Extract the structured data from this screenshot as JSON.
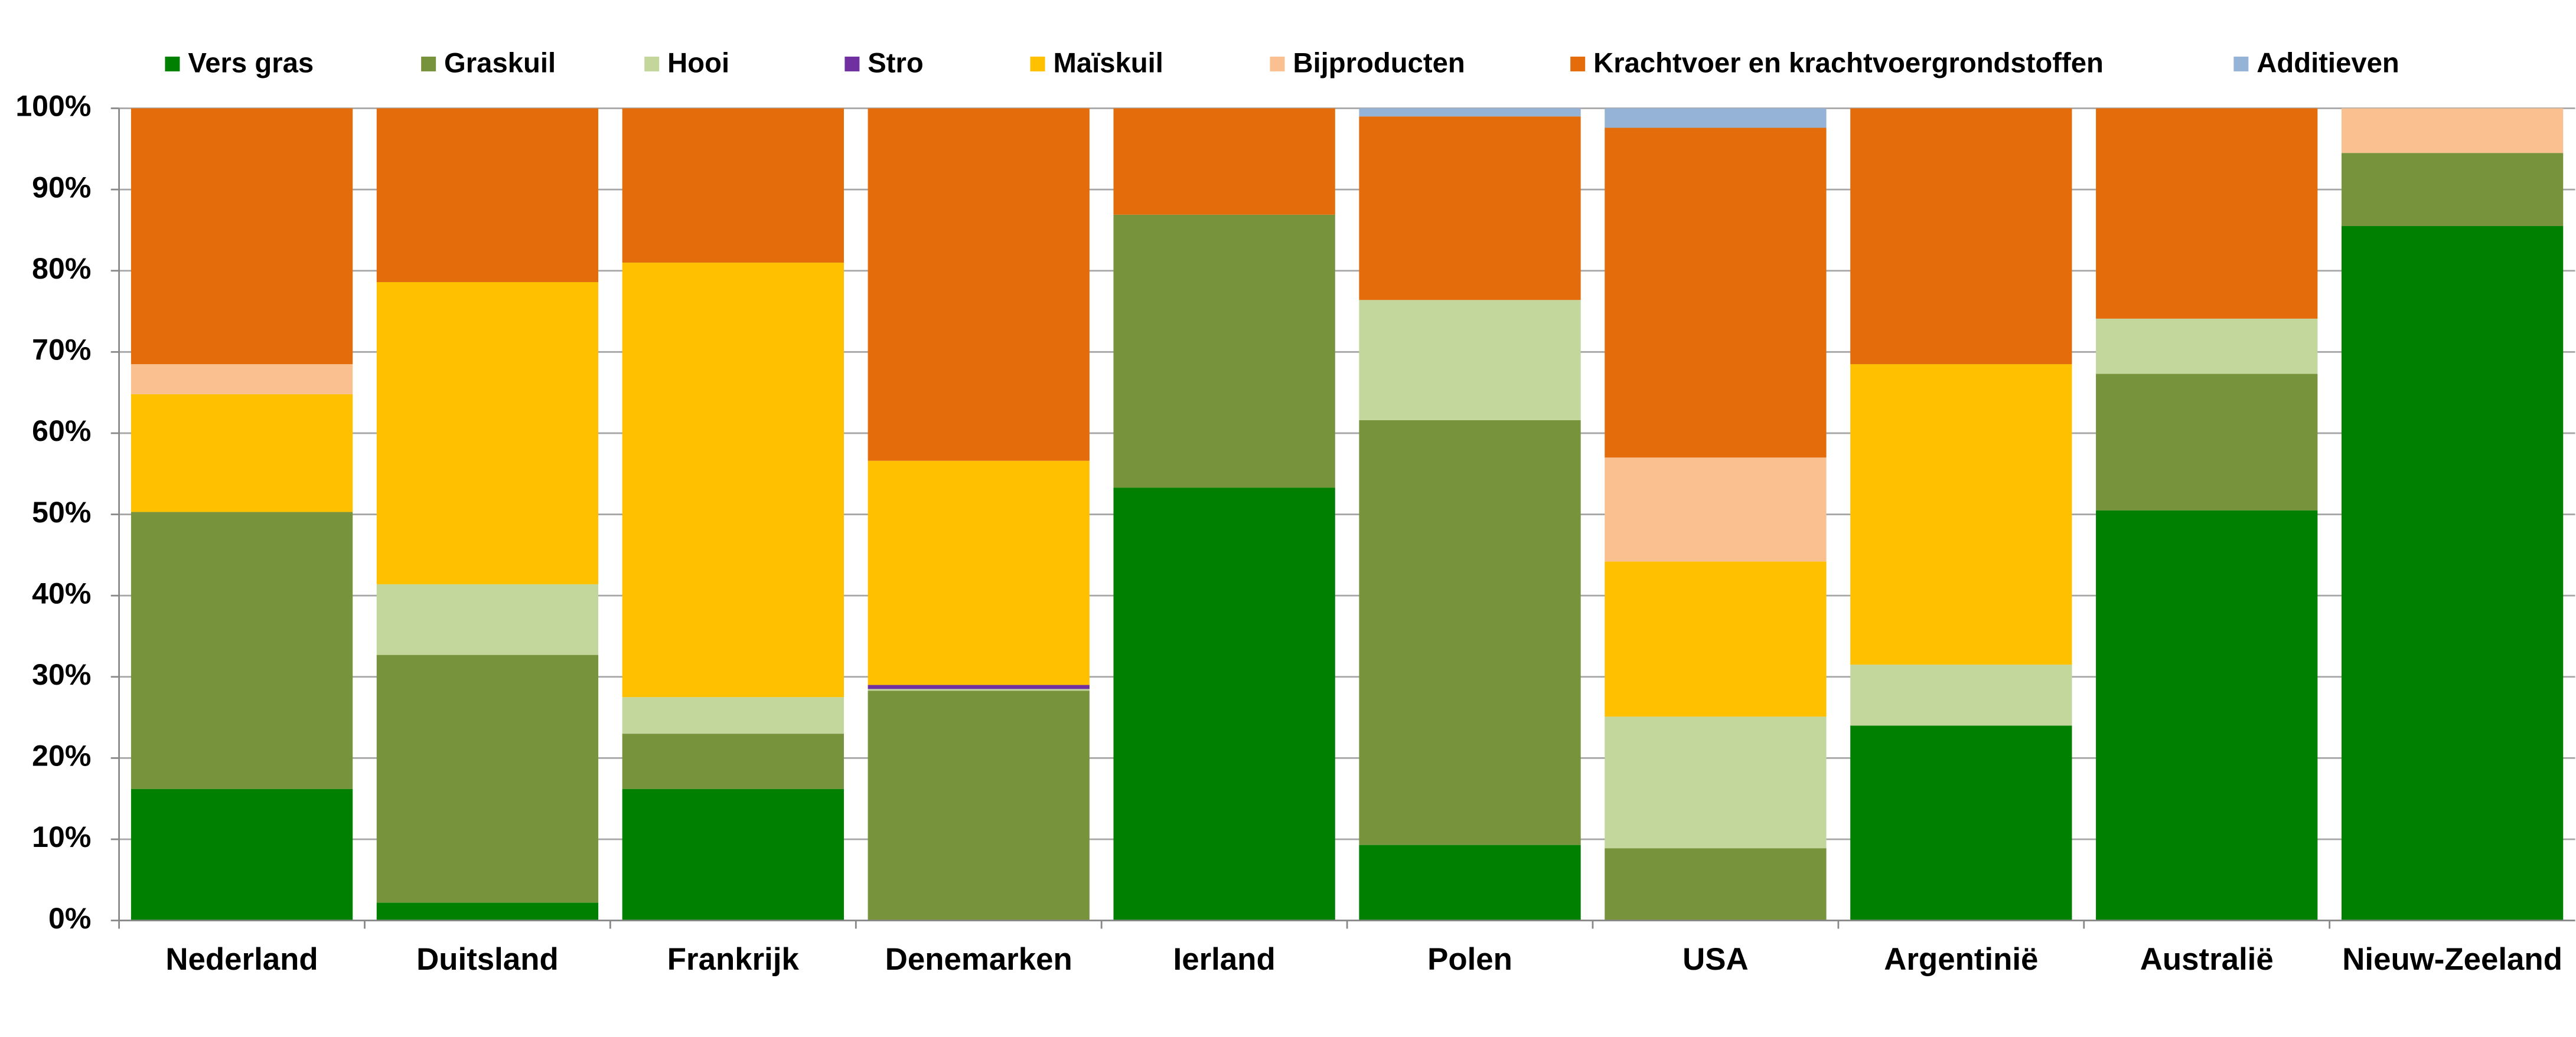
{
  "chart_data": {
    "type": "stacked-bar",
    "categories": [
      "Nederland",
      "Duitsland",
      "Frankrijk",
      "Denemarken",
      "Ierland",
      "Polen",
      "USA",
      "Argentinië",
      "Australië",
      "Nieuw-Zeeland"
    ],
    "series": [
      {
        "name": "Vers gras",
        "color": "#008000",
        "values": [
          16.2,
          2.2,
          16.2,
          0,
          53.3,
          9.3,
          0,
          24.0,
          50.5,
          85.5
        ]
      },
      {
        "name": "Graskuil",
        "color": "#77933c",
        "values": [
          34.1,
          30.5,
          6.8,
          28.3,
          33.6,
          52.3,
          8.9,
          0,
          16.8,
          9.0
        ]
      },
      {
        "name": "Hooi",
        "color": "#c3d69b",
        "values": [
          0,
          8.7,
          4.5,
          0.2,
          0,
          14.8,
          16.2,
          7.5,
          6.8,
          0
        ]
      },
      {
        "name": "Stro",
        "color": "#7030a0",
        "values": [
          0,
          0,
          0,
          0.5,
          0,
          0,
          0,
          0,
          0,
          0
        ]
      },
      {
        "name": "Maïskuil",
        "color": "#ffc000",
        "values": [
          14.5,
          37.2,
          53.5,
          27.6,
          0,
          0,
          19.1,
          37.0,
          0,
          0
        ]
      },
      {
        "name": "Bijproducten",
        "color": "#fac090",
        "values": [
          3.7,
          0,
          0,
          0,
          0,
          0,
          12.8,
          0,
          0,
          5.5
        ]
      },
      {
        "name": "Krachtvoer en krachtvoergrondstoffen",
        "color": "#e46c0a",
        "values": [
          31.5,
          21.4,
          19.0,
          43.4,
          13.1,
          22.6,
          40.6,
          31.5,
          25.9,
          0
        ]
      },
      {
        "name": "Additieven",
        "color": "#95b3d7",
        "values": [
          0,
          0,
          0,
          0,
          0,
          1.0,
          2.4,
          0,
          0,
          0
        ]
      }
    ],
    "ylim": [
      0,
      100
    ],
    "yticks": [
      {
        "value": 0,
        "label": "0%"
      },
      {
        "value": 10,
        "label": "10%"
      },
      {
        "value": 20,
        "label": "20%"
      },
      {
        "value": 30,
        "label": "30%"
      },
      {
        "value": 40,
        "label": "40%"
      },
      {
        "value": 50,
        "label": "50%"
      },
      {
        "value": 60,
        "label": "60%"
      },
      {
        "value": 70,
        "label": "70%"
      },
      {
        "value": 80,
        "label": "80%"
      },
      {
        "value": 90,
        "label": "90%"
      },
      {
        "value": 100,
        "label": "100%"
      }
    ],
    "grid": true
  }
}
